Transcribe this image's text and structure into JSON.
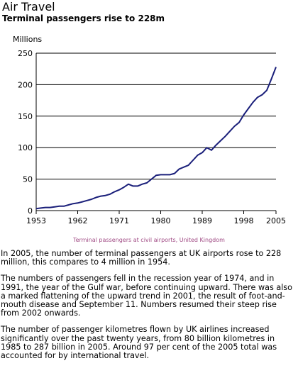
{
  "header": {
    "title": "Air Travel",
    "subtitle": "Terminal passengers rise to 228m"
  },
  "chart_data": {
    "type": "line",
    "ylabel": "Millions",
    "xlabel": "",
    "xlim": [
      1953,
      2005
    ],
    "ylim": [
      0,
      250
    ],
    "x_ticks": [
      1953,
      1962,
      1971,
      1980,
      1989,
      1998,
      2005
    ],
    "y_ticks": [
      0,
      50,
      100,
      150,
      200,
      250
    ],
    "grid": "horizontal",
    "caption": "Terminal passengers at civil airports, United Kingdom",
    "caption_color": "#a04a84",
    "line_color": "#1a1f7a",
    "series": [
      {
        "x": [
          1953,
          1954,
          1955,
          1956,
          1957,
          1958,
          1959,
          1960,
          1961,
          1962,
          1963,
          1964,
          1965,
          1966,
          1967,
          1968,
          1969,
          1970,
          1971,
          1972,
          1973,
          1974,
          1975,
          1976,
          1977,
          1978,
          1979,
          1980,
          1981,
          1982,
          1983,
          1984,
          1985,
          1986,
          1987,
          1988,
          1989,
          1990,
          1991,
          1992,
          1993,
          1994,
          1995,
          1996,
          1997,
          1998,
          1999,
          2000,
          2001,
          2002,
          2003,
          2004,
          2005
        ],
        "values": [
          3,
          4,
          5,
          5,
          6,
          7,
          7,
          9,
          11,
          12,
          14,
          16,
          18,
          21,
          23,
          24,
          26,
          30,
          33,
          37,
          42,
          39,
          39,
          42,
          44,
          50,
          56,
          57,
          57,
          57,
          59,
          66,
          69,
          72,
          80,
          88,
          92,
          100,
          96,
          104,
          111,
          118,
          126,
          134,
          140,
          152,
          162,
          172,
          180,
          184,
          191,
          209,
          228
        ]
      }
    ]
  },
  "body": {
    "p1": "In 2005, the number of terminal passengers at UK airports rose to 228 million, this compares to 4 million in 1954.",
    "p2": "The numbers of passengers fell in the recession year of 1974, and in 1991, the year of the Gulf war, before continuing upward. There was also a marked flattening of the upward trend in 2001, the result of foot-and-mouth disease and September 11. Numbers resumed their steep rise from 2002 onwards.",
    "p3": "The number of passenger kilometres flown by UK airlines increased significantly over the past twenty years, from 80 billion kilometres in 1985 to 287 billion in 2005. Around 97 per cent of the 2005 total was accounted for by international travel."
  }
}
